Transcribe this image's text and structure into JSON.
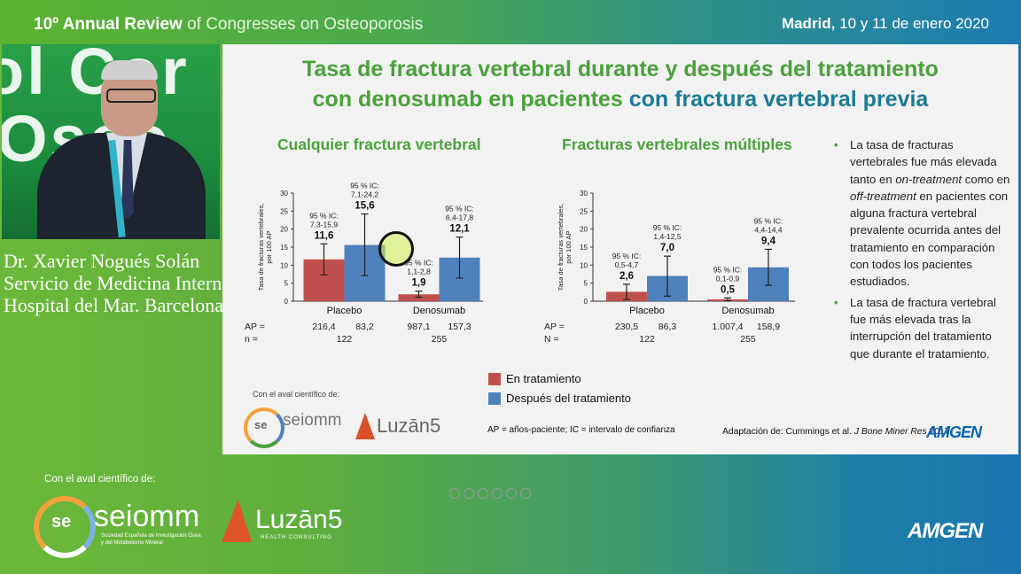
{
  "header": {
    "event_bold": "10º Annual Review",
    "event_rest": " of Congresses on Osteoporosis",
    "place_bold": "Madrid,",
    "place_rest": " 10 y 11 de enero 2020"
  },
  "speaker": {
    "name": "Dr. Xavier Nogués Solán",
    "dept": "Servicio de Medicina Interna",
    "hospital": "Hospital del Mar. Barcelona"
  },
  "slide": {
    "title_line1": "Tasa de fractura vertebral durante y después del tratamiento",
    "title_line2_green": "con denosumab en pacientes ",
    "title_line2_blue": "con fractura vertebral previa",
    "bullets": [
      {
        "text_a": "La tasa de fracturas vertebrales fue más elevada tanto en ",
        "em1": "on-treatment",
        "text_b": " como en ",
        "em2": "off-treatment",
        "text_c": " en pacientes con alguna fractura vertebral prevalente ocurrida antes del tratamiento en comparación con todos los pacientes estudiados."
      },
      {
        "text_a": "La tasa de fractura vertebral fue más elevada tras la interrupción del tratamiento que durante el tratamiento."
      }
    ],
    "legend": [
      "En tratamiento",
      "Después del tratamiento"
    ],
    "footnote": "AP = años-paciente; IC = intervalo de confianza",
    "adapt_prefix": "Adaptación de: Cummings et al. ",
    "adapt_journal": "J Bone Miner Res",
    "adapt_year": " 2017",
    "aval": "Con el aval científico de:",
    "seiomm": "seiomm",
    "seiomm_sub": "Sociedad Española de Investigación Ósea y del Metabolismo Mineral",
    "luzan": "Luzān5",
    "amgen": "AMGEN"
  },
  "bottom": {
    "aval": "Con el aval científico de:",
    "seiomm": "seiomm",
    "seiomm_sub1": "Sociedad Española de Investigación Ósea",
    "seiomm_sub2": "y del Metabolismo Mineral",
    "luzan": "Luzān5",
    "luzan_sub": "HEALTH CONSULTING",
    "amgen": "AMGEN"
  },
  "colors": {
    "on_treatment": "#c0504d",
    "off_treatment": "#4f81bd",
    "title_green": "#4aa13b",
    "title_blue": "#1b7b96"
  },
  "chart_data": [
    {
      "type": "bar",
      "title": "Cualquier fractura vertebral",
      "ylabel": "Tasa de fracturas vertebrales, por 100 AP",
      "ylim": [
        0,
        30
      ],
      "yticks": [
        0,
        5,
        10,
        15,
        20,
        25,
        30
      ],
      "categories": [
        "Placebo",
        "Denosumab"
      ],
      "series": [
        {
          "name": "En tratamiento",
          "values": [
            11.6,
            1.9
          ],
          "labels": [
            "11,6",
            "1,9"
          ],
          "ci": [
            [
              7.3,
              15.9
            ],
            [
              1.1,
              2.8
            ]
          ],
          "ci_labels": [
            "7,3-15,9",
            "1,1-2,8"
          ]
        },
        {
          "name": "Después del tratamiento",
          "values": [
            15.6,
            12.1
          ],
          "labels": [
            "15,6",
            "12,1"
          ],
          "ci": [
            [
              7.1,
              24.2
            ],
            [
              6.4,
              17.8
            ]
          ],
          "ci_labels": [
            "7,1-24,2",
            "6,4-17,8"
          ]
        }
      ],
      "ci_prefix": "95 % IC:",
      "ap_label": "AP =",
      "n_label": "n =",
      "ap": [
        [
          "216,4",
          "83,2"
        ],
        [
          "987,1",
          "157,3"
        ]
      ],
      "n": [
        "122",
        "255"
      ]
    },
    {
      "type": "bar",
      "title": "Fracturas vertebrales múltiples",
      "ylabel": "Tasa de fracturas vertebrales, por 100 AP",
      "ylim": [
        0,
        30
      ],
      "yticks": [
        0,
        5,
        10,
        15,
        20,
        25,
        30
      ],
      "categories": [
        "Placebo",
        "Denosumab"
      ],
      "series": [
        {
          "name": "En tratamiento",
          "values": [
            2.6,
            0.5
          ],
          "labels": [
            "2,6",
            "0,5"
          ],
          "ci": [
            [
              0.5,
              4.7
            ],
            [
              0.1,
              0.9
            ]
          ],
          "ci_labels": [
            "0,5-4,7",
            "0,1-0,9"
          ]
        },
        {
          "name": "Después del tratamiento",
          "values": [
            7.0,
            9.4
          ],
          "labels": [
            "7,0",
            "9,4"
          ],
          "ci": [
            [
              1.4,
              12.5
            ],
            [
              4.4,
              14.4
            ]
          ],
          "ci_labels": [
            "1,4-12,5",
            "4,4-14,4"
          ]
        }
      ],
      "ci_prefix": "95 % IC:",
      "ap_label": "AP =",
      "n_label": "N =",
      "ap": [
        [
          "230,5",
          "86,3"
        ],
        [
          "1.007,4",
          "158,9"
        ]
      ],
      "n": [
        "122",
        "255"
      ]
    }
  ]
}
